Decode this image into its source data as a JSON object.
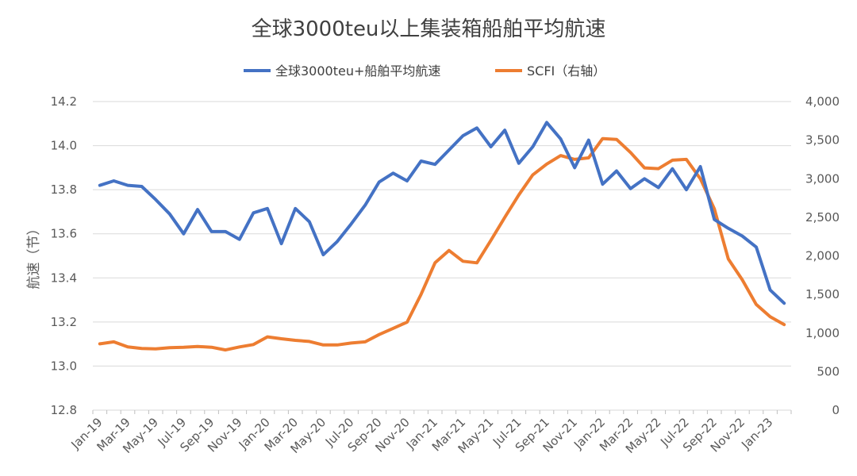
{
  "chart_data": {
    "type": "line",
    "title": "全球3000teu以上集装箱船舶平均航速",
    "ylabel": "航速（节）",
    "ylabel_right": "",
    "ylim": [
      12.8,
      14.2
    ],
    "ylim_right": [
      0,
      4000
    ],
    "yticks": [
      "12.8",
      "13.0",
      "13.2",
      "13.4",
      "13.6",
      "13.8",
      "14.0",
      "14.2"
    ],
    "yticks_right": [
      "0",
      "500",
      "1,000",
      "1,500",
      "2,000",
      "2,500",
      "3,000",
      "3,500",
      "4,000"
    ],
    "x": [
      "Jan-19",
      "Feb-19",
      "Mar-19",
      "Apr-19",
      "May-19",
      "Jun-19",
      "Jul-19",
      "Aug-19",
      "Sep-19",
      "Oct-19",
      "Nov-19",
      "Dec-19",
      "Jan-20",
      "Feb-20",
      "Mar-20",
      "Apr-20",
      "May-20",
      "Jun-20",
      "Jul-20",
      "Aug-20",
      "Sep-20",
      "Oct-20",
      "Nov-20",
      "Dec-20",
      "Jan-21",
      "Feb-21",
      "Mar-21",
      "Apr-21",
      "May-21",
      "Jun-21",
      "Jul-21",
      "Aug-21",
      "Sep-21",
      "Oct-21",
      "Nov-21",
      "Dec-21",
      "Jan-22",
      "Feb-22",
      "Mar-22",
      "Apr-22",
      "May-22",
      "Jun-22",
      "Jul-22",
      "Aug-22",
      "Sep-22",
      "Oct-22",
      "Nov-22",
      "Dec-22",
      "Jan-23",
      "Feb-23"
    ],
    "xtick_labels": [
      "Jan-19",
      "Mar-19",
      "May-19",
      "Jul-19",
      "Sep-19",
      "Nov-19",
      "Jan-20",
      "Mar-20",
      "May-20",
      "Jul-20",
      "Sep-20",
      "Nov-20",
      "Jan-21",
      "Mar-21",
      "May-21",
      "Jul-21",
      "Sep-21",
      "Nov-21",
      "Jan-22",
      "Mar-22",
      "May-22",
      "Jul-22",
      "Sep-22",
      "Nov-22",
      "Jan-23"
    ],
    "grid": true,
    "legend_position": "top",
    "series": [
      {
        "name": "全球3000teu+船舶平均航速",
        "axis": "left",
        "color": "#4472C4",
        "values": [
          13.82,
          13.84,
          13.82,
          13.815,
          13.755,
          13.69,
          13.6,
          13.71,
          13.61,
          13.61,
          13.575,
          13.695,
          13.715,
          13.555,
          13.715,
          13.655,
          13.505,
          13.565,
          13.645,
          13.73,
          13.835,
          13.875,
          13.84,
          13.93,
          13.915,
          13.98,
          14.045,
          14.08,
          13.995,
          14.07,
          13.92,
          13.995,
          14.105,
          14.03,
          13.9,
          14.025,
          13.825,
          13.885,
          13.805,
          13.85,
          13.81,
          13.895,
          13.8,
          13.905,
          13.665,
          13.625,
          13.59,
          13.54,
          13.345,
          13.285
        ]
      },
      {
        "name": "SCFI（右轴）",
        "axis": "right",
        "color": "#ED7D31",
        "values": [
          860,
          885,
          820,
          800,
          795,
          810,
          815,
          825,
          815,
          780,
          820,
          850,
          950,
          925,
          905,
          890,
          845,
          845,
          870,
          885,
          980,
          1060,
          1140,
          1500,
          1910,
          2070,
          1930,
          1910,
          2200,
          2500,
          2790,
          3050,
          3190,
          3300,
          3250,
          3270,
          3520,
          3510,
          3340,
          3140,
          3130,
          3240,
          3250,
          3000,
          2610,
          1960,
          1690,
          1370,
          1210,
          1110
        ]
      }
    ]
  }
}
